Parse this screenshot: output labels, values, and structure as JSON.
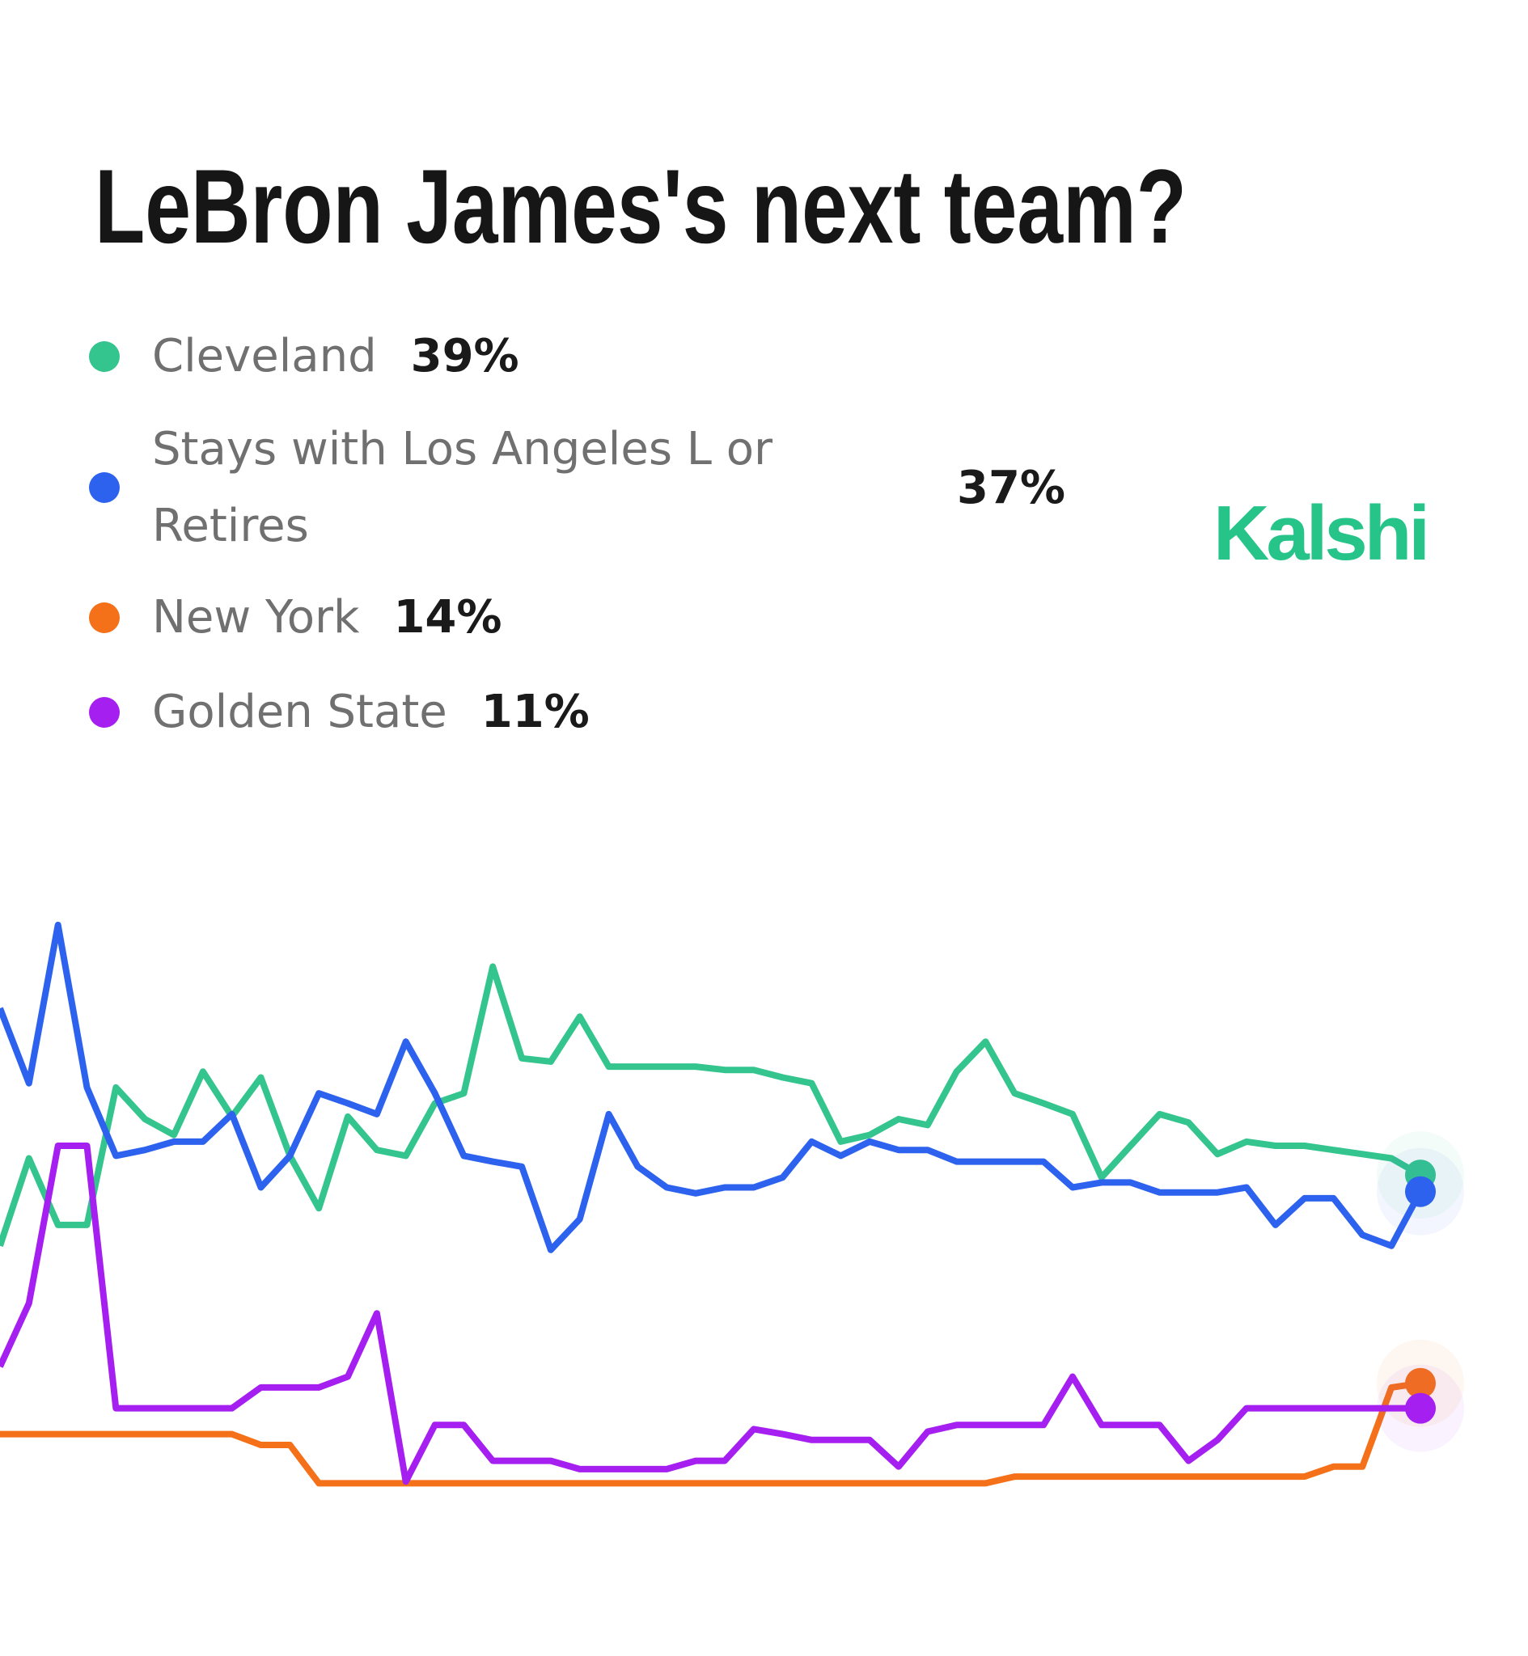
{
  "chart_data": {
    "type": "line",
    "title": "LeBron James's next team?",
    "brand": "Kalshi",
    "ylim": [
      0,
      72
    ],
    "series": [
      {
        "name": "Cleveland",
        "color": "#34c48e",
        "current_value": 39,
        "current_label": "39%",
        "values": [
          30.5,
          41,
          33,
          33,
          49.5,
          45.7,
          43.8,
          51.4,
          46,
          50.7,
          41.3,
          35,
          46,
          42,
          41.3,
          47.6,
          48.8,
          64,
          53,
          52.6,
          58,
          52,
          52,
          52,
          52,
          51.6,
          51.6,
          50.7,
          50,
          43,
          43.8,
          45.7,
          45,
          51.4,
          55,
          48.8,
          47.6,
          46.3,
          38.7,
          42.5,
          46.3,
          45.3,
          41.5,
          43,
          42.5,
          42.5,
          42,
          41.5,
          41,
          39
        ]
      },
      {
        "name": "Stays with Los Angeles L or Retires",
        "color": "#2d62ee",
        "current_value": 37,
        "current_label": "37%",
        "values": [
          59,
          50,
          69,
          49.5,
          41.3,
          42,
          43,
          43,
          46.3,
          37.5,
          41.3,
          48.8,
          47.6,
          46.3,
          55,
          48.8,
          41.3,
          40.6,
          40,
          30,
          33.7,
          46.3,
          40,
          37.5,
          36.8,
          37.5,
          37.5,
          38.7,
          43,
          41.3,
          43,
          42,
          42,
          40.6,
          40.6,
          40.6,
          40.6,
          37.5,
          38.1,
          38.1,
          36.9,
          36.9,
          36.9,
          37.5,
          33,
          36.2,
          36.2,
          31.8,
          30.5,
          37
        ]
      },
      {
        "name": "New York",
        "color": "#f47119",
        "current_value": 14,
        "current_label": "14%",
        "values": [
          7.9,
          7.9,
          7.9,
          7.9,
          7.9,
          7.9,
          7.9,
          7.9,
          7.9,
          6.6,
          6.6,
          2,
          2,
          2,
          2,
          2,
          2,
          2,
          2,
          2,
          2,
          2,
          2,
          2,
          2,
          2,
          2,
          2,
          2,
          2,
          2,
          2,
          2,
          2,
          2,
          2.8,
          2.8,
          2.8,
          2.8,
          2.8,
          2.8,
          2.8,
          2.8,
          2.8,
          2.8,
          2.8,
          4,
          4,
          13.5,
          14
        ]
      },
      {
        "name": "Golden State",
        "color": "#a51ff0",
        "current_value": 11,
        "current_label": "11%",
        "values": [
          16,
          23.6,
          42.5,
          42.5,
          11,
          11,
          11,
          11,
          11,
          13.5,
          13.5,
          13.5,
          14.8,
          22.4,
          2.2,
          9,
          9,
          4.7,
          4.7,
          4.7,
          3.7,
          3.7,
          3.7,
          3.7,
          4.7,
          4.7,
          8.5,
          7.9,
          7.2,
          7.2,
          7.2,
          4,
          8.2,
          9,
          9,
          9,
          9,
          14.8,
          9,
          9,
          9,
          4.7,
          7.2,
          11,
          11,
          11,
          11,
          11,
          11,
          11
        ]
      }
    ]
  }
}
